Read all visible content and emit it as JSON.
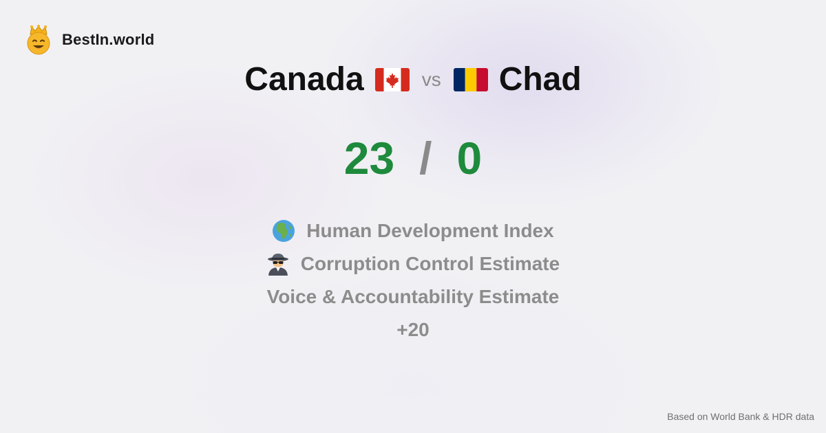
{
  "brand": {
    "name": "BestIn.world",
    "logo_icon": "crowned-smiley-icon"
  },
  "comparison": {
    "left_country": "Canada",
    "left_flag_icon": "canada-flag-icon",
    "vs_label": "vs",
    "right_country": "Chad",
    "right_flag_icon": "chad-flag-icon"
  },
  "score": {
    "left": "23",
    "separator": "/",
    "right": "0"
  },
  "metrics": [
    {
      "icon": "globe-africa-icon",
      "label": "Human Development Index"
    },
    {
      "icon": "detective-icon",
      "label": "Corruption Control Estimate"
    },
    {
      "icon": "",
      "label": "Voice & Accountability Estimate"
    },
    {
      "icon": "",
      "label": "+20"
    }
  ],
  "footer": {
    "source_note": "Based on World Bank & HDR data"
  },
  "colors": {
    "score_green": "#1e8a3c",
    "muted_gray": "#8c8c8c",
    "title_black": "#111111",
    "canada_red": "#d52b1e",
    "chad_blue": "#002664",
    "chad_yellow": "#fecb00",
    "chad_red": "#c60c30"
  }
}
